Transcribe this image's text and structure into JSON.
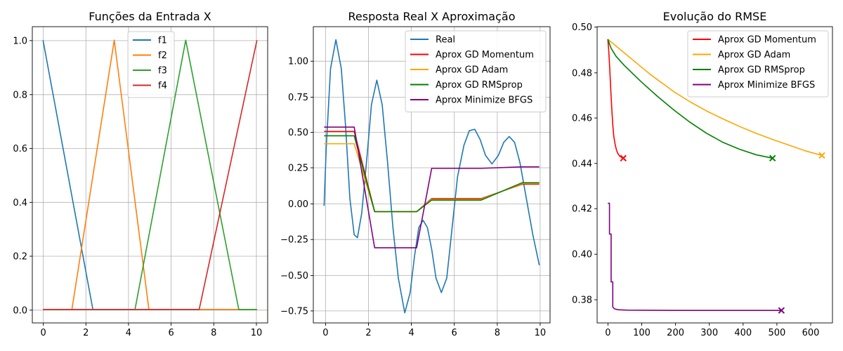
{
  "chart_data": [
    {
      "type": "line",
      "title": "Funções da Entrada X",
      "xlim": [
        -0.5,
        10.5
      ],
      "ylim": [
        -0.05,
        1.05
      ],
      "xticks": [
        "0",
        "2",
        "4",
        "6",
        "8",
        "10"
      ],
      "yticks": [
        "0.0",
        "0.2",
        "0.4",
        "0.6",
        "0.8",
        "1.0"
      ],
      "grid": true,
      "legend_position": "top-center",
      "series": [
        {
          "name": "f1",
          "color": "#1f77b4",
          "points": [
            [
              0,
              1.0
            ],
            [
              2.33,
              0.0
            ],
            [
              10,
              0.0
            ]
          ]
        },
        {
          "name": "f2",
          "color": "#ff7f0e",
          "points": [
            [
              0,
              0.0
            ],
            [
              1.35,
              0.0
            ],
            [
              3.33,
              1.0
            ],
            [
              4.95,
              0.0
            ],
            [
              10,
              0.0
            ]
          ]
        },
        {
          "name": "f3",
          "color": "#2ca02c",
          "points": [
            [
              0,
              0.0
            ],
            [
              4.3,
              0.0
            ],
            [
              6.67,
              1.0
            ],
            [
              9.15,
              0.0
            ],
            [
              10,
              0.0
            ]
          ]
        },
        {
          "name": "f4",
          "color": "#d62728",
          "points": [
            [
              0,
              0.0
            ],
            [
              7.3,
              0.0
            ],
            [
              10,
              1.0
            ]
          ]
        }
      ]
    },
    {
      "type": "line",
      "title": "Resposta Real X Aproximação",
      "xlim": [
        -0.5,
        10.5
      ],
      "ylim": [
        -0.81,
        1.24
      ],
      "xticks": [
        "0",
        "2",
        "4",
        "6",
        "8",
        "10"
      ],
      "yticks": [
        "−0.75",
        "−0.50",
        "−0.25",
        "0.00",
        "0.25",
        "0.50",
        "0.75",
        "1.00"
      ],
      "grid": true,
      "legend_position": "top-right",
      "series": [
        {
          "name": "Real",
          "color": "#1f77b4",
          "points": [
            [
              0,
              0.0
            ],
            [
              0.1,
              0.4
            ],
            [
              0.3,
              0.95
            ],
            [
              0.55,
              1.15
            ],
            [
              0.8,
              0.95
            ],
            [
              1.0,
              0.55
            ],
            [
              1.2,
              0.05
            ],
            [
              1.4,
              -0.2
            ],
            [
              1.55,
              -0.22
            ],
            [
              1.75,
              -0.05
            ],
            [
              2.0,
              0.35
            ],
            [
              2.2,
              0.7
            ],
            [
              2.45,
              0.87
            ],
            [
              2.7,
              0.7
            ],
            [
              2.95,
              0.3
            ],
            [
              3.2,
              -0.15
            ],
            [
              3.45,
              -0.5
            ],
            [
              3.75,
              -0.74
            ],
            [
              4.0,
              -0.6
            ],
            [
              4.2,
              -0.35
            ],
            [
              4.4,
              -0.15
            ],
            [
              4.6,
              -0.1
            ],
            [
              4.8,
              -0.15
            ],
            [
              5.0,
              -0.3
            ],
            [
              5.2,
              -0.5
            ],
            [
              5.45,
              -0.6
            ],
            [
              5.7,
              -0.5
            ],
            [
              5.95,
              -0.15
            ],
            [
              6.2,
              0.2
            ],
            [
              6.5,
              0.42
            ],
            [
              6.75,
              0.52
            ],
            [
              7.0,
              0.53
            ],
            [
              7.25,
              0.46
            ],
            [
              7.5,
              0.35
            ],
            [
              7.8,
              0.29
            ],
            [
              8.1,
              0.35
            ],
            [
              8.35,
              0.44
            ],
            [
              8.6,
              0.48
            ],
            [
              8.85,
              0.44
            ],
            [
              9.1,
              0.3
            ],
            [
              9.4,
              0.05
            ],
            [
              9.7,
              -0.2
            ],
            [
              10.0,
              -0.41
            ]
          ]
        },
        {
          "name": "Aprox GD Momentum",
          "color": "#ff0000",
          "points": [
            [
              0,
              0.515
            ],
            [
              1.4,
              0.515
            ],
            [
              2.35,
              -0.04
            ],
            [
              4.3,
              -0.04
            ],
            [
              5.0,
              0.05
            ],
            [
              7.3,
              0.05
            ],
            [
              9.2,
              0.15
            ],
            [
              10.0,
              0.15
            ]
          ]
        },
        {
          "name": "Aprox GD Adam",
          "color": "#ffa500",
          "points": [
            [
              0,
              0.43
            ],
            [
              1.4,
              0.43
            ],
            [
              2.35,
              -0.04
            ],
            [
              4.3,
              -0.04
            ],
            [
              5.0,
              0.045
            ],
            [
              7.3,
              0.045
            ],
            [
              9.2,
              0.155
            ],
            [
              10.0,
              0.155
            ]
          ]
        },
        {
          "name": "Aprox GD RMSprop",
          "color": "#008000",
          "points": [
            [
              0,
              0.485
            ],
            [
              1.4,
              0.485
            ],
            [
              2.35,
              -0.04
            ],
            [
              4.3,
              -0.04
            ],
            [
              5.0,
              0.04
            ],
            [
              7.3,
              0.04
            ],
            [
              9.2,
              0.16
            ],
            [
              10.0,
              0.16
            ]
          ]
        },
        {
          "name": "Aprox Minimize BFGS",
          "color": "#800080",
          "points": [
            [
              0,
              0.545
            ],
            [
              1.4,
              0.545
            ],
            [
              2.35,
              -0.29
            ],
            [
              4.3,
              -0.29
            ],
            [
              5.0,
              0.26
            ],
            [
              7.3,
              0.26
            ],
            [
              9.2,
              0.27
            ],
            [
              10.0,
              0.27
            ]
          ]
        }
      ]
    },
    {
      "type": "line",
      "title": "Evolução do RMSE",
      "xlim": [
        -32.5,
        682
      ],
      "ylim": [
        0.37,
        0.5
      ],
      "xticks": [
        "0",
        "100",
        "200",
        "300",
        "400",
        "500",
        "600"
      ],
      "yticks": [
        "0.38",
        "0.40",
        "0.42",
        "0.44",
        "0.46",
        "0.48",
        "0.50"
      ],
      "grid": false,
      "legend_position": "top-right",
      "series": [
        {
          "name": "Aprox GD Momentum",
          "color": "#ff0000",
          "end_marker": "x",
          "points": [
            [
              0,
              0.4945
            ],
            [
              3,
              0.489
            ],
            [
              6,
              0.481
            ],
            [
              9,
              0.472
            ],
            [
              12,
              0.464
            ],
            [
              15,
              0.457
            ],
            [
              18,
              0.452
            ],
            [
              22,
              0.4485
            ],
            [
              26,
              0.446
            ],
            [
              30,
              0.4445
            ],
            [
              36,
              0.4432
            ],
            [
              42,
              0.4426
            ],
            [
              47,
              0.4423
            ]
          ]
        },
        {
          "name": "Aprox GD Adam",
          "color": "#ffa500",
          "end_marker": "x",
          "points": [
            [
              0,
              0.4945
            ],
            [
              25,
              0.4915
            ],
            [
              50,
              0.4885
            ],
            [
              75,
              0.4855
            ],
            [
              100,
              0.4825
            ],
            [
              125,
              0.4795
            ],
            [
              150,
              0.4768
            ],
            [
              175,
              0.4742
            ],
            [
              200,
              0.4715
            ],
            [
              250,
              0.467
            ],
            [
              300,
              0.463
            ],
            [
              350,
              0.4595
            ],
            [
              400,
              0.4562
            ],
            [
              450,
              0.4532
            ],
            [
              500,
              0.4505
            ],
            [
              550,
              0.448
            ],
            [
              600,
              0.4455
            ],
            [
              650,
              0.4435
            ]
          ]
        },
        {
          "name": "Aprox GD RMSprop",
          "color": "#008000",
          "end_marker": "x",
          "points": [
            [
              0,
              0.4945
            ],
            [
              10,
              0.4905
            ],
            [
              25,
              0.487
            ],
            [
              50,
              0.483
            ],
            [
              75,
              0.4795
            ],
            [
              100,
              0.476
            ],
            [
              150,
              0.4695
            ],
            [
              200,
              0.4635
            ],
            [
              250,
              0.458
            ],
            [
              300,
              0.4532
            ],
            [
              350,
              0.4492
            ],
            [
              400,
              0.4462
            ],
            [
              450,
              0.4438
            ],
            [
              500,
              0.4423
            ]
          ]
        },
        {
          "name": "Aprox Minimize BFGS",
          "color": "#800080",
          "end_marker": "x",
          "points": [
            [
              0,
              0.4225
            ],
            [
              5,
              0.4225
            ],
            [
              5,
              0.409
            ],
            [
              10,
              0.409
            ],
            [
              10,
              0.388
            ],
            [
              15,
              0.388
            ],
            [
              15,
              0.377
            ],
            [
              20,
              0.3762
            ],
            [
              30,
              0.3758
            ],
            [
              60,
              0.3756
            ],
            [
              200,
              0.3755
            ],
            [
              527,
              0.3755
            ]
          ]
        }
      ]
    }
  ]
}
